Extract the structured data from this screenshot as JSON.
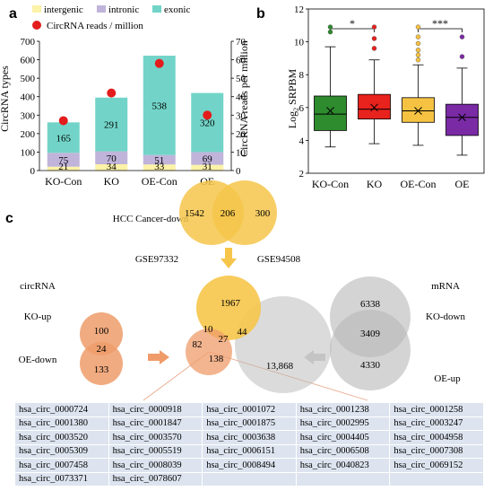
{
  "panel_labels": {
    "a": "a",
    "b": "b",
    "c": "c"
  },
  "colors": {
    "intergenic": "#fcf2a8",
    "intronic": "#c0b4da",
    "exonic": "#72d4c8",
    "reads": "#e31c1c",
    "box_ko_con": "#2e8b2e",
    "box_ko": "#e8221d",
    "box_oe_con": "#f5c242",
    "box_oe": "#7b2aa6",
    "venn_yellow": "#f6c54a",
    "venn_orange": "#ef9c6a",
    "venn_gray": "#b8b8b8",
    "table_cell": "#dde4ef"
  },
  "chart_data": [
    {
      "type": "bar",
      "stacked": true,
      "categories": [
        "KO-Con",
        "KO",
        "OE-Con",
        "OE"
      ],
      "series": [
        {
          "name": "intergenic",
          "values": [
            21,
            34,
            33,
            31
          ]
        },
        {
          "name": "intronic",
          "values": [
            75,
            70,
            51,
            69
          ]
        },
        {
          "name": "exonic",
          "values": [
            165,
            291,
            538,
            320
          ]
        }
      ],
      "secondary_series": {
        "name": "CircRNA reads / million",
        "type": "scatter",
        "values": [
          27,
          42,
          58,
          30
        ]
      },
      "ylabel": "CircRNA types",
      "ylabel_right": "CircRNA reads per million",
      "ylim": [
        0,
        700
      ],
      "ylim_right": [
        0,
        70
      ],
      "yticks": [
        "0",
        "100",
        "200",
        "300",
        "400",
        "500",
        "600",
        "700"
      ],
      "yticks_right": [
        "0",
        "10",
        "20",
        "30",
        "40",
        "50",
        "60",
        "70"
      ],
      "legend_position": "top"
    },
    {
      "type": "box",
      "categories": [
        "KO-Con",
        "KO",
        "OE-Con",
        "OE"
      ],
      "ylabel": "Log2 SRPBM",
      "ylim": [
        2,
        12
      ],
      "yticks": [
        "2",
        "4",
        "6",
        "8",
        "10",
        "12"
      ],
      "boxes": [
        {
          "whisker_low": 3.6,
          "q1": 4.6,
          "median": 5.6,
          "q3": 6.7,
          "whisker_high": 9.7,
          "mean": 5.8,
          "outliers": [
            10.6,
            10.9
          ]
        },
        {
          "whisker_low": 3.8,
          "q1": 5.3,
          "median": 5.9,
          "q3": 6.8,
          "whisker_high": 8.9,
          "mean": 6.0,
          "outliers": [
            9.6,
            10.2,
            10.9
          ]
        },
        {
          "whisker_low": 3.7,
          "q1": 5.1,
          "median": 5.8,
          "q3": 6.6,
          "whisker_high": 8.6,
          "mean": 5.8,
          "outliers": [
            8.9,
            9.2,
            9.5,
            9.9,
            10.3,
            10.9
          ]
        },
        {
          "whisker_low": 3.1,
          "q1": 4.3,
          "median": 5.4,
          "q3": 6.2,
          "whisker_high": 8.4,
          "mean": 5.4,
          "outliers": [
            9.1,
            10.3
          ]
        }
      ],
      "significance": [
        {
          "pair": [
            "KO-Con",
            "KO"
          ],
          "label": "*"
        },
        {
          "pair": [
            "OE-Con",
            "OE"
          ],
          "label": "***"
        }
      ]
    }
  ],
  "venn": {
    "hcc_title": "HCC Cancer-down",
    "hcc_left_label": "GSE97332",
    "hcc_right_label": "GSE94508",
    "hcc_left_only": "1542",
    "hcc_both": "206",
    "hcc_right_only": "300",
    "circ_title": "circRNA",
    "circ_top_label": "KO-up",
    "circ_bottom_label": "OE-down",
    "circ_top_only": "100",
    "circ_both": "24",
    "circ_bottom_only": "133",
    "mrna_title": "mRNA",
    "mrna_top_label": "KO-down",
    "mrna_bottom_label": "OE-up",
    "mrna_top_only": "6338",
    "mrna_both": "3409",
    "mrna_bottom_only": "4330",
    "c3_yellow_only": "1967",
    "c3_yellow_orange": "10",
    "c3_all": "27",
    "c3_yellow_gray": "44",
    "c3_orange_only": "82",
    "c3_orange_gray": "138",
    "c3_gray_only": "13,868"
  },
  "table_rows": [
    [
      "hsa_circ_0000724",
      "hsa_circ_0000918",
      "hsa_circ_0001072",
      "hsa_circ_0001238",
      "hsa_circ_0001258"
    ],
    [
      "hsa_circ_0001380",
      "hsa_circ_0001847",
      "hsa_circ_0001875",
      "hsa_circ_0002995",
      "hsa_circ_0003247"
    ],
    [
      "hsa_circ_0003520",
      "hsa_circ_0003570",
      "hsa_circ_0003638",
      "hsa_circ_0004405",
      "hsa_circ_0004958"
    ],
    [
      "hsa_circ_0005309",
      "hsa_circ_0005519",
      "hsa_circ_0006151",
      "hsa_circ_0006508",
      "hsa_circ_0007308"
    ],
    [
      "hsa_circ_0007458",
      "hsa_circ_0008039",
      "hsa_circ_0008494",
      "hsa_circ_0040823",
      "hsa_circ_0069152"
    ],
    [
      "hsa_circ_0073371",
      "hsa_circ_0078607",
      "",
      "",
      ""
    ]
  ]
}
